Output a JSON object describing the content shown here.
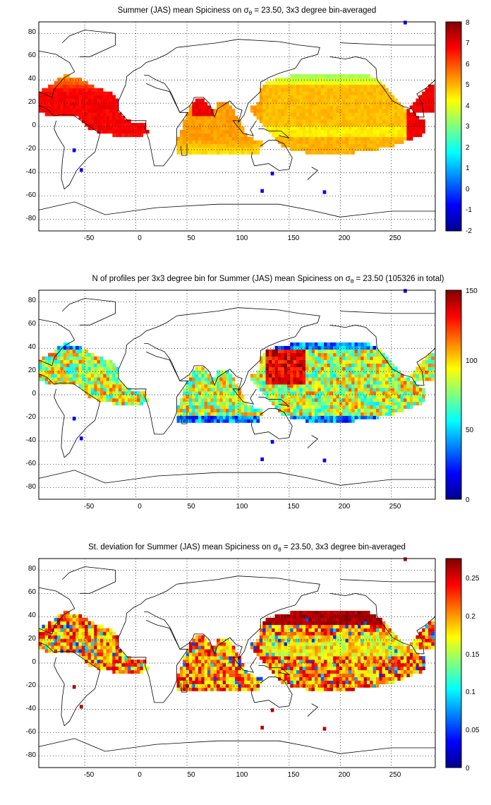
{
  "chart_data": [
    {
      "type": "heatmap",
      "title": "Summer (JAS) mean Spiciness on σθ = 23.50, 3x3 degree bin-averaged",
      "title_parts": {
        "pre": "Summer (JAS) mean Spiciness on ",
        "sigma": "σ",
        "sub": "θ",
        "post": " = 23.50, 3x3 degree bin-averaged"
      },
      "variable": "mean",
      "xlim": [
        -95,
        293
      ],
      "ylim": [
        -90,
        90
      ],
      "xticks": [
        "-50",
        "0",
        "50",
        "100",
        "150",
        "200",
        "250"
      ],
      "yticks": [
        "80",
        "60",
        "40",
        "20",
        "0",
        "-20",
        "-40",
        "-60",
        "-80"
      ],
      "grid": true,
      "colorbar": {
        "min": -2,
        "max": 8,
        "ticks": [
          "8",
          "7",
          "6",
          "5",
          "4",
          "3",
          "2",
          "1",
          "0",
          "-1",
          "-2"
        ]
      }
    },
    {
      "type": "heatmap",
      "title": "N of profiles per 3x3 degree bin for Summer (JAS) mean Spiciness on σθ = 23.50 (105326 in total)",
      "title_parts": {
        "pre": "N of profiles per 3x3 degree bin for Summer (JAS) mean Spiciness on ",
        "sigma": "σ",
        "sub": "θ",
        "post": " = 23.50 (105326 in total)"
      },
      "variable": "count",
      "total_profiles": 105326,
      "xlim": [
        -95,
        293
      ],
      "ylim": [
        -90,
        90
      ],
      "xticks": [
        "-50",
        "0",
        "50",
        "100",
        "150",
        "200",
        "250"
      ],
      "yticks": [
        "80",
        "60",
        "40",
        "20",
        "0",
        "-20",
        "-40",
        "-60",
        "-80"
      ],
      "grid": true,
      "colorbar": {
        "min": 0,
        "max": 150,
        "ticks": [
          "150",
          "100",
          "50",
          "0"
        ]
      }
    },
    {
      "type": "heatmap",
      "title": "St. deviation for Summer (JAS) mean Spiciness on σθ = 23.50, 3x3 degree bin-averaged",
      "title_parts": {
        "pre": "St. deviation for Summer (JAS) mean Spiciness on ",
        "sigma": "σ",
        "sub": "θ",
        "post": " = 23.50, 3x3 degree bin-averaged"
      },
      "variable": "std",
      "xlim": [
        -95,
        293
      ],
      "ylim": [
        -90,
        90
      ],
      "xticks": [
        "-50",
        "0",
        "50",
        "100",
        "150",
        "200",
        "250"
      ],
      "yticks": [
        "80",
        "60",
        "40",
        "20",
        "0",
        "-20",
        "-40",
        "-60",
        "-80"
      ],
      "grid": true,
      "colorbar": {
        "min": 0,
        "max": 0.275,
        "ticks": [
          "0.25",
          "0.2",
          "0.15",
          "0.1",
          "0.05",
          "0"
        ]
      }
    }
  ],
  "colormap": "jet",
  "colors": {
    "land_outline": "#000000",
    "grid": "#000000",
    "background": "#ffffff"
  }
}
